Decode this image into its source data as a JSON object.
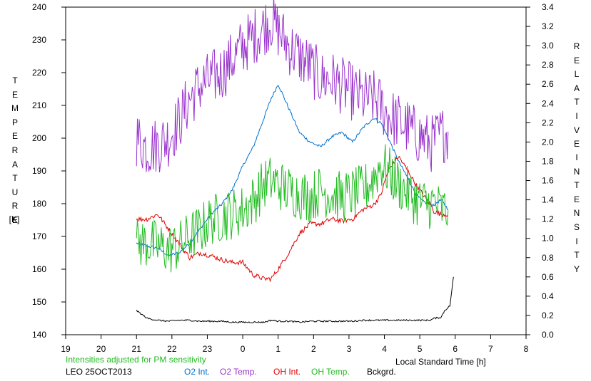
{
  "chart_data": {
    "type": "line",
    "left_axis": {
      "label_letters": [
        "T",
        "E",
        "M",
        "P",
        "E",
        "R",
        "A",
        "T",
        "U",
        "R",
        "E"
      ],
      "unit": "[K]",
      "range": [
        140,
        240
      ],
      "ticks": [
        "140",
        "150",
        "160",
        "170",
        "180",
        "190",
        "200",
        "210",
        "220",
        "230",
        "240"
      ]
    },
    "right_axis": {
      "label_word1": [
        "R",
        "E",
        "L",
        "A",
        "T",
        "I",
        "V",
        "E"
      ],
      "label_word2": [
        "I",
        "N",
        "T",
        "E",
        "N",
        "S",
        "I",
        "T",
        "Y"
      ],
      "range": [
        0.0,
        3.4
      ],
      "ticks": [
        "0.0",
        "0.2",
        "0.4",
        "0.6",
        "0.8",
        "1.0",
        "1.2",
        "1.4",
        "1.6",
        "1.8",
        "2.0",
        "2.2",
        "2.4",
        "2.6",
        "2.8",
        "3.0",
        "3.2",
        "3.4"
      ]
    },
    "x_axis": {
      "label": "Local Standard Time [h]",
      "range": [
        19,
        32
      ],
      "ticks": [
        "19",
        "20",
        "21",
        "22",
        "23",
        "0",
        "1",
        "2",
        "3",
        "4",
        "5",
        "6",
        "7",
        "8"
      ]
    },
    "note": "Intensities adjusted for PM sensitivity",
    "station_date": "LEO 25OCT2013",
    "series": [
      {
        "name": "O2 Int.",
        "color": "#0070d0",
        "axis": "right",
        "noise": 0.015,
        "x": [
          21.0,
          21.3,
          21.6,
          21.9,
          22.2,
          22.5,
          22.8,
          23.1,
          23.4,
          23.7,
          24.0,
          24.3,
          24.6,
          24.8,
          25.0,
          25.3,
          25.6,
          25.9,
          26.2,
          26.5,
          26.8,
          27.1,
          27.4,
          27.7,
          27.9,
          28.1,
          28.4,
          28.7,
          28.9,
          29.1,
          29.3,
          29.4,
          29.6,
          29.8
        ],
        "y": [
          0.95,
          0.92,
          0.9,
          0.82,
          0.85,
          0.95,
          1.1,
          1.25,
          1.35,
          1.5,
          1.75,
          1.95,
          2.25,
          2.45,
          2.6,
          2.35,
          2.1,
          2.0,
          1.95,
          2.05,
          2.1,
          2.0,
          2.15,
          2.25,
          2.2,
          2.05,
          1.8,
          1.6,
          1.45,
          1.38,
          1.35,
          1.35,
          1.4,
          1.3
        ]
      },
      {
        "name": "O2 Temp.",
        "color": "#9933cc",
        "axis": "left",
        "noise": 9,
        "x": [
          21.0,
          21.3,
          21.6,
          21.9,
          22.2,
          22.5,
          22.8,
          23.1,
          23.4,
          23.7,
          24.0,
          24.3,
          24.6,
          24.8,
          25.0,
          25.3,
          25.6,
          25.9,
          26.2,
          26.5,
          26.8,
          27.1,
          27.4,
          27.7,
          27.9,
          28.1,
          28.4,
          28.7,
          28.9,
          29.1,
          29.3,
          29.4,
          29.6,
          29.8
        ],
        "y": [
          200,
          197,
          198,
          200,
          205,
          212,
          216,
          218,
          220,
          224,
          228,
          231,
          234,
          236,
          233,
          228,
          225,
          222,
          218,
          218,
          216,
          214,
          212,
          212,
          210,
          207,
          205,
          203,
          201,
          200,
          198,
          199,
          201,
          202
        ]
      },
      {
        "name": "OH Int.",
        "color": "#e00000",
        "axis": "right",
        "noise": 0.025,
        "x": [
          21.0,
          21.3,
          21.6,
          21.9,
          22.2,
          22.5,
          22.8,
          23.1,
          23.4,
          23.7,
          24.0,
          24.3,
          24.6,
          24.8,
          25.0,
          25.3,
          25.6,
          25.9,
          26.2,
          26.5,
          26.8,
          27.1,
          27.4,
          27.7,
          27.9,
          28.1,
          28.4,
          28.7,
          28.9,
          29.1,
          29.3,
          29.4,
          29.6,
          29.8
        ],
        "y": [
          1.2,
          1.2,
          1.25,
          1.1,
          0.95,
          0.8,
          0.85,
          0.82,
          0.78,
          0.75,
          0.75,
          0.62,
          0.58,
          0.58,
          0.68,
          0.85,
          1.05,
          1.15,
          1.15,
          1.2,
          1.18,
          1.2,
          1.3,
          1.35,
          1.45,
          1.7,
          1.85,
          1.68,
          1.55,
          1.45,
          1.35,
          1.28,
          1.25,
          1.25
        ]
      },
      {
        "name": "OH Temp.",
        "color": "#22bb22",
        "axis": "left",
        "noise": 8,
        "x": [
          21.0,
          21.3,
          21.6,
          21.9,
          22.2,
          22.5,
          22.8,
          23.1,
          23.4,
          23.7,
          24.0,
          24.3,
          24.6,
          24.8,
          25.0,
          25.3,
          25.6,
          25.9,
          26.2,
          26.5,
          26.8,
          27.1,
          27.4,
          27.7,
          27.9,
          28.1,
          28.4,
          28.7,
          28.9,
          29.1,
          29.3,
          29.4,
          29.6,
          29.8
        ],
        "y": [
          168,
          168,
          167,
          166,
          167,
          170,
          172,
          175,
          176,
          177,
          178,
          181,
          186,
          187,
          186,
          184,
          183,
          182,
          184,
          183,
          182,
          183,
          184,
          188,
          192,
          190,
          186,
          183,
          181,
          180,
          180,
          180,
          178,
          178
        ]
      },
      {
        "name": "Bckgrd.",
        "color": "#000000",
        "axis": "right",
        "noise": 0.008,
        "x": [
          21.0,
          21.3,
          21.6,
          21.9,
          22.2,
          22.5,
          22.8,
          23.1,
          23.4,
          23.7,
          24.0,
          24.3,
          24.6,
          24.8,
          25.0,
          25.3,
          25.6,
          25.9,
          26.2,
          26.5,
          26.8,
          27.1,
          27.4,
          27.7,
          27.9,
          28.1,
          28.4,
          28.7,
          28.9,
          29.1,
          29.3,
          29.4,
          29.6,
          29.7,
          29.85,
          29.95
        ],
        "y": [
          0.25,
          0.17,
          0.15,
          0.14,
          0.15,
          0.15,
          0.14,
          0.14,
          0.14,
          0.13,
          0.13,
          0.13,
          0.13,
          0.15,
          0.14,
          0.14,
          0.13,
          0.14,
          0.14,
          0.14,
          0.14,
          0.14,
          0.15,
          0.15,
          0.15,
          0.15,
          0.15,
          0.15,
          0.15,
          0.15,
          0.15,
          0.17,
          0.18,
          0.25,
          0.3,
          0.6
        ]
      }
    ]
  }
}
